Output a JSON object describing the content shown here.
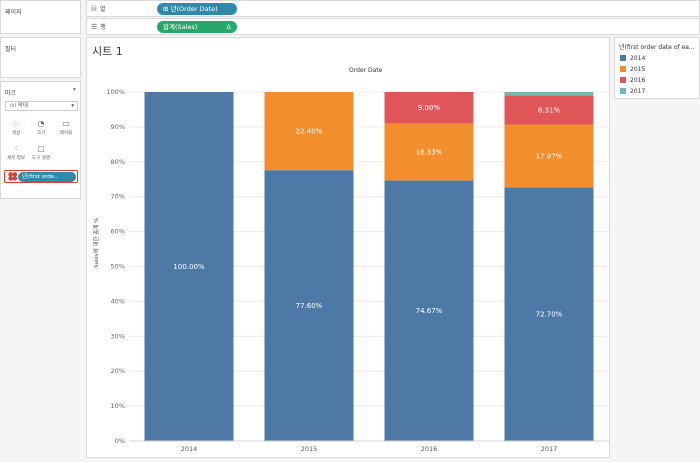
{
  "left_panel": {
    "pages_title": "페이지",
    "filters_title": "필터",
    "marks_title": "마크",
    "mark_type": "막대",
    "buttons": [
      {
        "label": "색상",
        "icon": "color-dots-icon"
      },
      {
        "label": "크기",
        "icon": "size-icon"
      },
      {
        "label": "레이블",
        "icon": "label-icon"
      },
      {
        "label": "세부 정보",
        "icon": "detail-icon"
      },
      {
        "label": "도구 설명",
        "icon": "tooltip-icon"
      }
    ],
    "color_field": "년(first orde.."
  },
  "shelves": {
    "columns_label": "열",
    "columns_pill": "년(Order Date)",
    "rows_label": "행",
    "rows_pill": "합계(Sales)",
    "rows_delta": "Δ"
  },
  "sheet": {
    "title": "시트 1"
  },
  "legend": {
    "title": "년(first order date of ea...",
    "items": [
      {
        "label": "2014",
        "color": "#4e79a7"
      },
      {
        "label": "2015",
        "color": "#f28e2b"
      },
      {
        "label": "2016",
        "color": "#e15759"
      },
      {
        "label": "2017",
        "color": "#76b7b2"
      }
    ]
  },
  "chart_data": {
    "type": "bar",
    "stacked": true,
    "title": "Order Date",
    "xlabel": "",
    "ylabel": "Sales에 대한 총계 %",
    "ylim": [
      0,
      100
    ],
    "yticks": [
      "0%",
      "10%",
      "20%",
      "30%",
      "40%",
      "50%",
      "60%",
      "70%",
      "80%",
      "90%",
      "100%"
    ],
    "categories": [
      "2014",
      "2015",
      "2016",
      "2017"
    ],
    "series": [
      {
        "name": "2014",
        "color": "#4e79a7",
        "values": [
          100.0,
          77.6,
          74.67,
          72.7
        ],
        "labels": [
          "100.00%",
          "77.60%",
          "74.67%",
          "72.70%"
        ]
      },
      {
        "name": "2015",
        "color": "#f28e2b",
        "values": [
          0,
          22.4,
          16.33,
          17.97
        ],
        "labels": [
          "",
          "22.40%",
          "16.33%",
          "17.97%"
        ]
      },
      {
        "name": "2016",
        "color": "#e15759",
        "values": [
          0,
          0,
          9.0,
          8.31
        ],
        "labels": [
          "",
          "",
          "9.00%",
          "8.31%"
        ]
      },
      {
        "name": "2017",
        "color": "#76b7b2",
        "values": [
          0,
          0,
          0,
          1.02
        ],
        "labels": [
          "",
          "",
          "",
          ""
        ]
      }
    ]
  }
}
